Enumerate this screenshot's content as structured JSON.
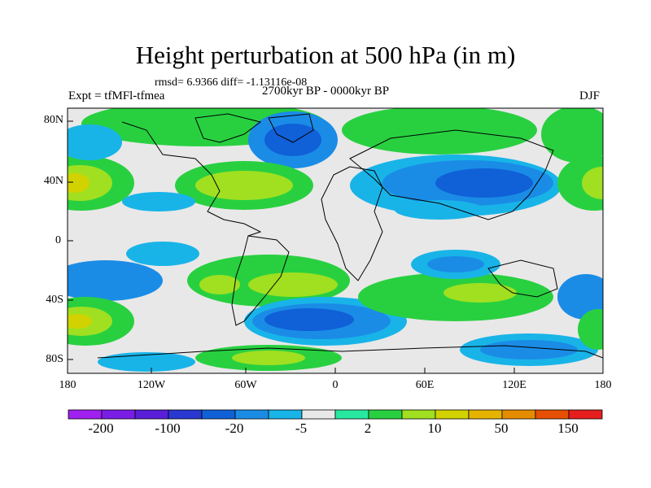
{
  "title": "Height perturbation at 500 hPa (in m)",
  "stats": "rmsd= 6.9366 diff= -1.13116e-08",
  "experiment": "Expt = tfMFl-tfmea",
  "period": "2700kyr BP - 0000kyr BP",
  "season": "DJF",
  "lat_labels": [
    "80N",
    "40N",
    "0",
    "40S",
    "80S"
  ],
  "lon_labels": [
    "180",
    "120W",
    "60W",
    "0",
    "60E",
    "120E",
    "180"
  ],
  "colorbar": {
    "colors": [
      "#a020f0",
      "#7a1ee6",
      "#5a1ed8",
      "#2838d0",
      "#1060d8",
      "#1a8ce6",
      "#18b4e8",
      "#e8e8e8",
      "#28e8a0",
      "#28d040",
      "#a0e020",
      "#d2d200",
      "#e6b400",
      "#e68c00",
      "#e65000",
      "#e61e1e"
    ],
    "labels": [
      "-200",
      "-100",
      "-20",
      "-5",
      "2",
      "10",
      "50",
      "150"
    ]
  },
  "legend_colors": {
    "neutral": "#e8e8e8",
    "neg_light": "#18b4e8",
    "neg_mid": "#1a8ce6",
    "neg_strong": "#1060d8",
    "pos_light": "#28e8a0",
    "pos_mid": "#28d040",
    "pos_strong": "#a0e020",
    "pos_peak": "#d2d200"
  }
}
